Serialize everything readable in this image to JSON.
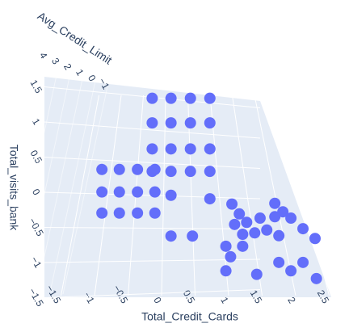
{
  "chart_data": {
    "type": "scatter3d",
    "xlabel": "Total_Credit_Cards",
    "ylabel": "Avg_Credit_Limit",
    "zlabel": "Total_visits_bank",
    "xticks": [
      {
        "value": -1.5,
        "label": "−1.5"
      },
      {
        "value": -1,
        "label": "−1"
      },
      {
        "value": -0.5,
        "label": "−0.5"
      },
      0,
      0.5,
      1,
      1.5,
      2,
      2.5
    ],
    "yticks": [
      {
        "value": -1,
        "label": "−1"
      },
      0,
      1,
      2,
      3,
      4
    ],
    "zticks": [
      {
        "value": -1.5,
        "label": "−1.5"
      },
      {
        "value": -1,
        "label": "−1"
      },
      {
        "value": -0.5,
        "label": "−0.5"
      },
      0,
      0.5,
      1,
      1.5
    ],
    "series": [
      {
        "color": "#636efa",
        "x": [
          -0.2,
          0.08,
          0.37,
          0.66,
          -0.2,
          0.08,
          0.37,
          0.66,
          -0.2,
          0.08,
          0.37,
          0.66,
          -0.2,
          0.08,
          0.37,
          0.66,
          0.08,
          0.66,
          0.08,
          0.4,
          -1.01,
          -0.75,
          -0.48,
          -0.22,
          -1.01,
          -0.75,
          -0.48,
          -0.22,
          -1.01,
          -0.75,
          -0.48,
          -0.22,
          1.29,
          1.4,
          1.51,
          1.63,
          1.71,
          1.33,
          1.45,
          1.2,
          1.27,
          1.2,
          1.93,
          2.05,
          2.17,
          2.35,
          2.53,
          1.81,
          1.99,
          1.45,
          1.66,
          1.99,
          2.17,
          2.35,
          2.55,
          1.93
        ],
        "y": [
          -0.5,
          -0.5,
          -0.5,
          -0.5,
          -0.5,
          -0.5,
          -0.5,
          -0.5,
          -0.5,
          -0.5,
          -0.5,
          -0.5,
          -0.5,
          -0.5,
          -0.5,
          -0.5,
          -0.5,
          -0.5,
          -0.5,
          -0.5,
          -1,
          -1,
          -1,
          -1,
          -1,
          -1,
          -1,
          -1,
          -1,
          -1,
          -1,
          -1,
          2,
          2,
          2,
          2,
          2,
          2,
          2,
          2,
          2,
          2,
          2,
          2,
          2,
          2,
          2,
          2,
          2,
          2,
          2,
          2,
          2,
          2,
          2,
          2
        ],
        "z": [
          1.36,
          1.36,
          1.36,
          1.36,
          1.01,
          1.01,
          1.01,
          1.01,
          0.64,
          0.64,
          0.64,
          0.64,
          0.32,
          0.32,
          0.32,
          0.32,
          -0.02,
          -0.07,
          -0.6,
          -0.6,
          0.37,
          0.37,
          0.37,
          0.37,
          0.05,
          0.05,
          0.05,
          0.05,
          -0.25,
          -0.25,
          -0.25,
          -0.25,
          -0.26,
          -0.4,
          -0.52,
          -0.67,
          -0.46,
          -0.55,
          -0.69,
          -0.86,
          -1.01,
          -1.21,
          -0.25,
          -0.37,
          -0.46,
          -0.61,
          -0.75,
          -0.63,
          -0.71,
          -0.86,
          -1.26,
          -1.09,
          -1.21,
          -1.09,
          -1.32,
          -0.44
        ]
      }
    ]
  }
}
